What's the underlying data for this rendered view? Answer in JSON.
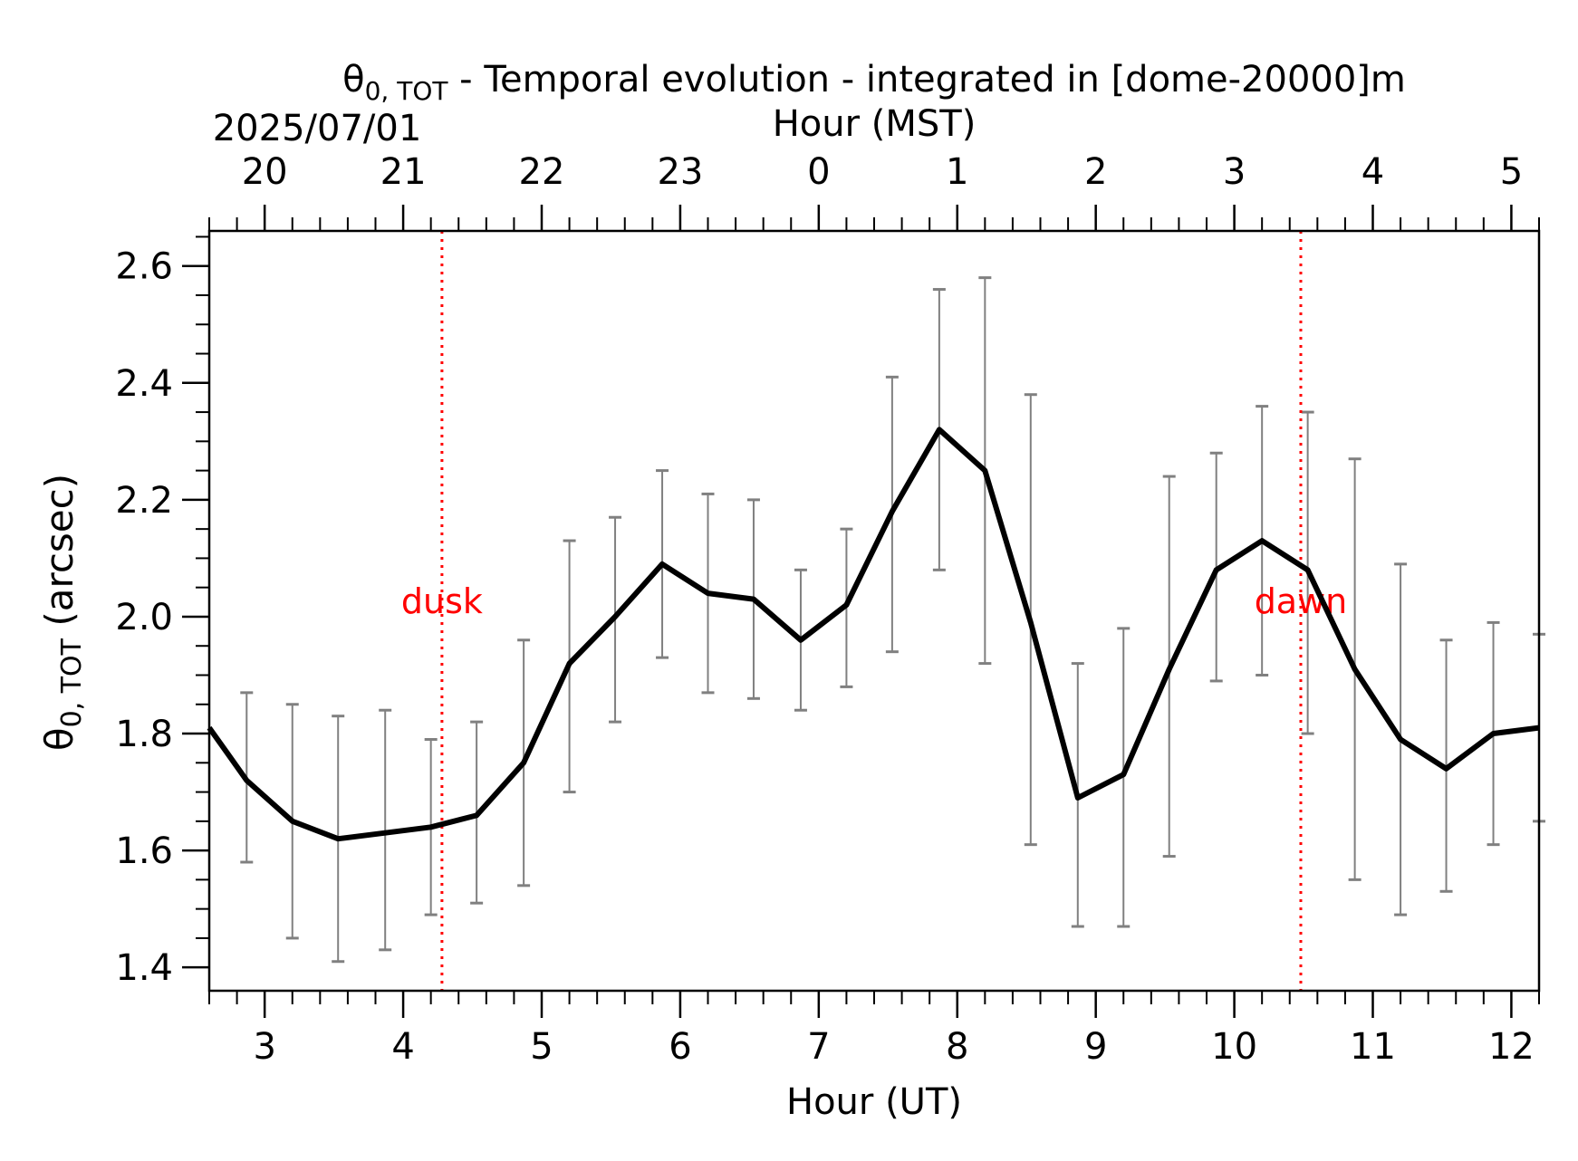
{
  "chart_data": {
    "type": "line",
    "title": {
      "symbol": "θ",
      "subscript": "0, TOT",
      "rest": " - Temporal evolution - integrated in [dome-20000]m"
    },
    "date_label": "2025/07/01",
    "xlabel": "Hour (UT)",
    "x2label": "Hour (MST)",
    "ylabel": {
      "symbol": "θ",
      "subscript": "0, TOT",
      "rest": " (arcsec)"
    },
    "xlim": [
      2.6,
      12.2
    ],
    "ylim": [
      1.36,
      2.66
    ],
    "x_ticks": [
      3,
      4,
      5,
      6,
      7,
      8,
      9,
      10,
      11,
      12
    ],
    "x_tick_labels": [
      "3",
      "4",
      "5",
      "6",
      "7",
      "8",
      "9",
      "10",
      "11",
      "12"
    ],
    "x2_tick_labels": [
      "20",
      "21",
      "22",
      "23",
      "0",
      "1",
      "2",
      "3",
      "4",
      "5"
    ],
    "y_ticks": [
      1.4,
      1.6,
      1.8,
      2.0,
      2.2,
      2.4,
      2.6
    ],
    "y_tick_labels": [
      "1.4",
      "1.6",
      "1.8",
      "2.0",
      "2.2",
      "2.4",
      "2.6"
    ],
    "grid": false,
    "series": [
      {
        "x": [
          2.6,
          2.87,
          3.2,
          3.53,
          3.87,
          4.2,
          4.53,
          4.87,
          5.2,
          5.53,
          5.87,
          6.2,
          6.53,
          6.87,
          7.2,
          7.53,
          7.87,
          8.2,
          8.53,
          8.87,
          9.2,
          9.53,
          9.87,
          10.2,
          10.53,
          10.87,
          11.2,
          11.53,
          11.87,
          12.2
        ],
        "y": [
          1.81,
          1.72,
          1.65,
          1.62,
          1.63,
          1.64,
          1.66,
          1.75,
          1.92,
          2.0,
          2.09,
          2.04,
          2.03,
          1.96,
          2.02,
          2.18,
          2.32,
          2.25,
          1.99,
          1.69,
          1.73,
          1.91,
          2.08,
          2.13,
          2.08,
          1.91,
          1.79,
          1.74,
          1.8,
          1.81
        ],
        "color": "#000000"
      }
    ],
    "error_bars": {
      "color": "#808080",
      "x": [
        2.87,
        3.2,
        3.53,
        3.87,
        4.2,
        4.53,
        4.87,
        5.2,
        5.53,
        5.87,
        6.2,
        6.53,
        6.87,
        7.2,
        7.53,
        7.87,
        8.2,
        8.53,
        8.87,
        9.2,
        9.53,
        9.87,
        10.2,
        10.53,
        10.87,
        11.2,
        11.53,
        11.87,
        12.2
      ],
      "low": [
        1.58,
        1.45,
        1.41,
        1.43,
        1.49,
        1.51,
        1.54,
        1.7,
        1.82,
        1.93,
        1.87,
        1.86,
        1.84,
        1.88,
        1.94,
        2.08,
        1.92,
        1.61,
        1.47,
        1.47,
        1.59,
        1.89,
        1.9,
        1.8,
        1.55,
        1.49,
        1.53,
        1.61,
        1.65
      ],
      "high": [
        1.87,
        1.85,
        1.83,
        1.84,
        1.79,
        1.82,
        1.96,
        2.13,
        2.17,
        2.25,
        2.21,
        2.2,
        2.08,
        2.15,
        2.41,
        2.56,
        2.58,
        2.38,
        1.92,
        1.98,
        2.24,
        2.28,
        2.36,
        2.35,
        2.27,
        2.09,
        1.96,
        1.99,
        1.97
      ]
    },
    "annotations": [
      {
        "text": "dusk",
        "x": 4.28,
        "y": 2.0,
        "color": "#ff0000",
        "line": "vertical-dotted"
      },
      {
        "text": "dawn",
        "x": 10.48,
        "y": 2.0,
        "color": "#ff0000",
        "line": "vertical-dotted"
      }
    ]
  }
}
